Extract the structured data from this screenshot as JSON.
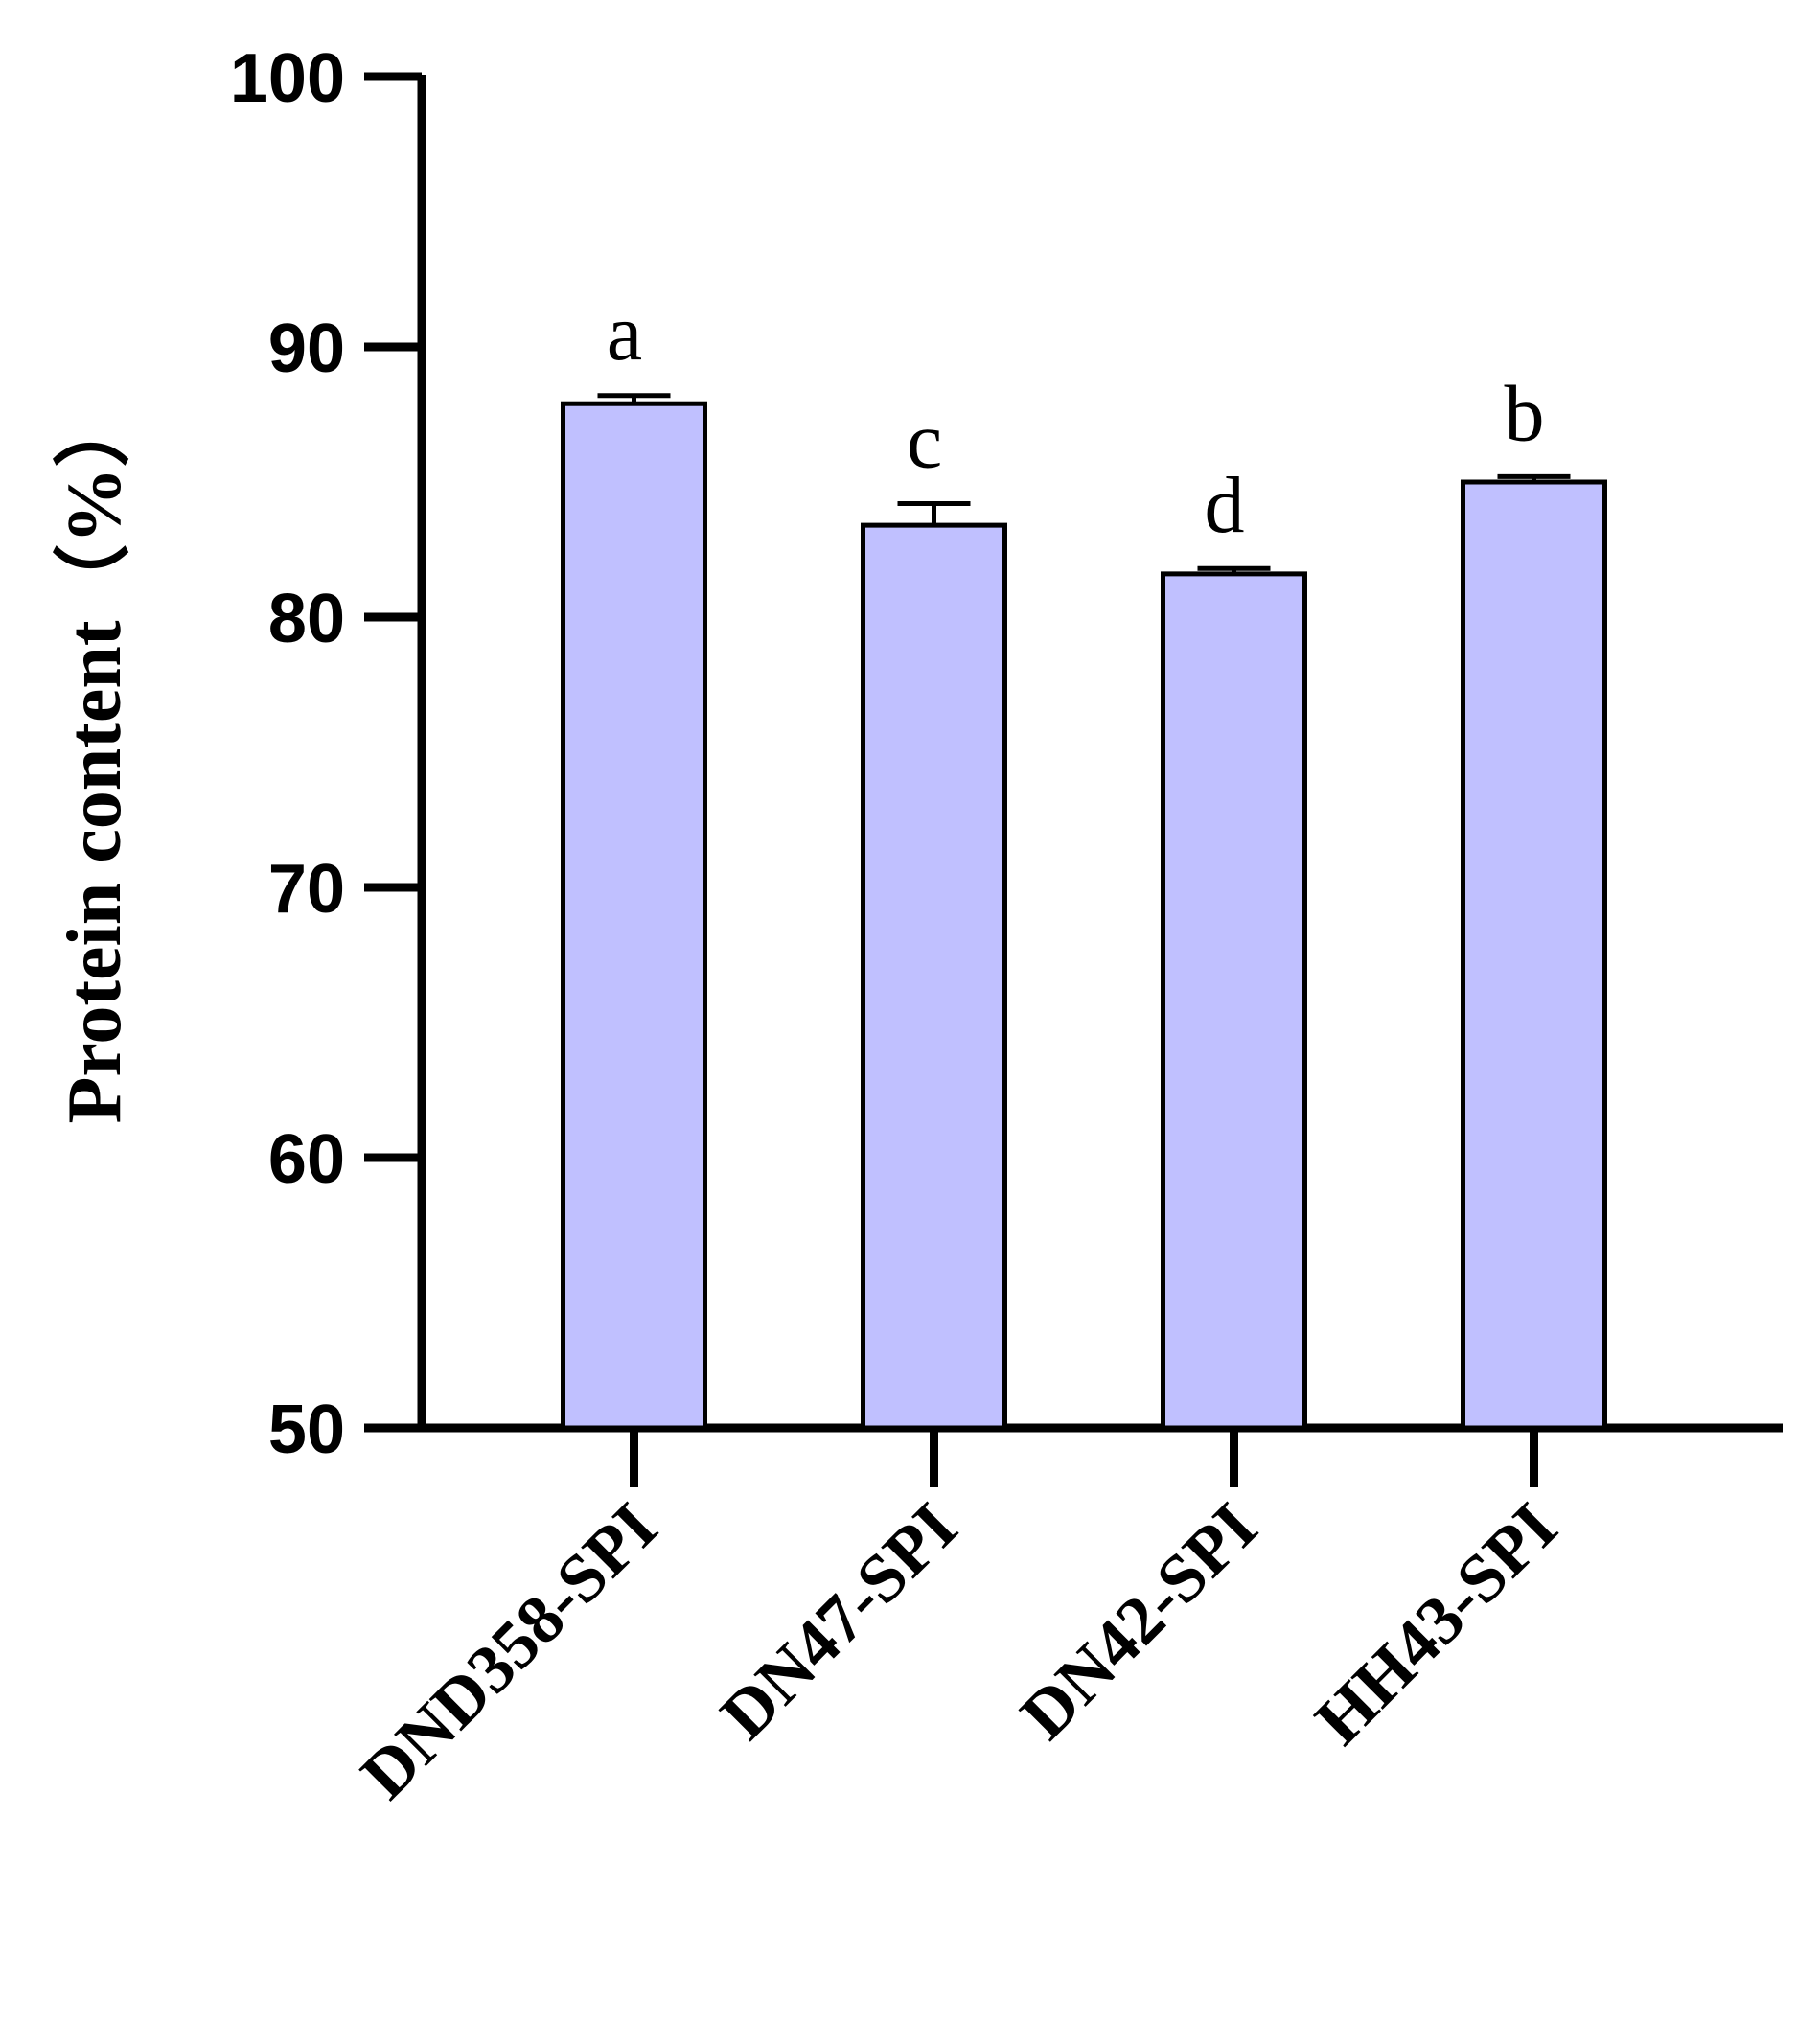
{
  "chart_data": {
    "type": "bar",
    "ylabel": "Protein content（%）",
    "xlabel": "",
    "ylim": [
      50,
      100
    ],
    "yticks": [
      "50",
      "60",
      "70",
      "80",
      "90",
      "100"
    ],
    "categories": [
      "DND358-SPI",
      "DN47-SPI",
      "DN42-SPI",
      "HH43-SPI"
    ],
    "values": [
      87.9,
      83.4,
      81.6,
      85.0
    ],
    "errors": [
      0.3,
      0.8,
      0.2,
      0.2
    ],
    "significance_letters": [
      "a",
      "c",
      "d",
      "b"
    ],
    "bar_color": "#c0c0ff",
    "edge_color": "#000000",
    "grid": false,
    "legend": "none"
  }
}
